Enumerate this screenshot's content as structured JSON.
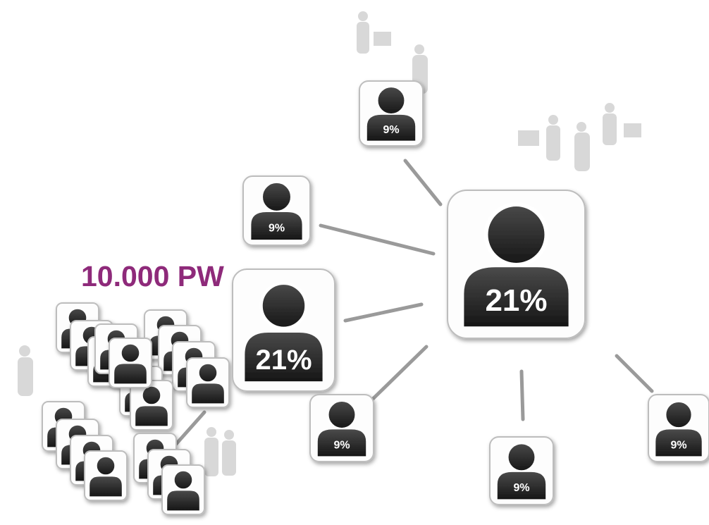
{
  "title": "10.000 PW",
  "nodes": [
    {
      "label": "21%"
    },
    {
      "label": "21%"
    },
    {
      "label": "9%"
    },
    {
      "label": "9%"
    },
    {
      "label": "9%"
    },
    {
      "label": "9%"
    },
    {
      "label": "9%"
    }
  ]
}
